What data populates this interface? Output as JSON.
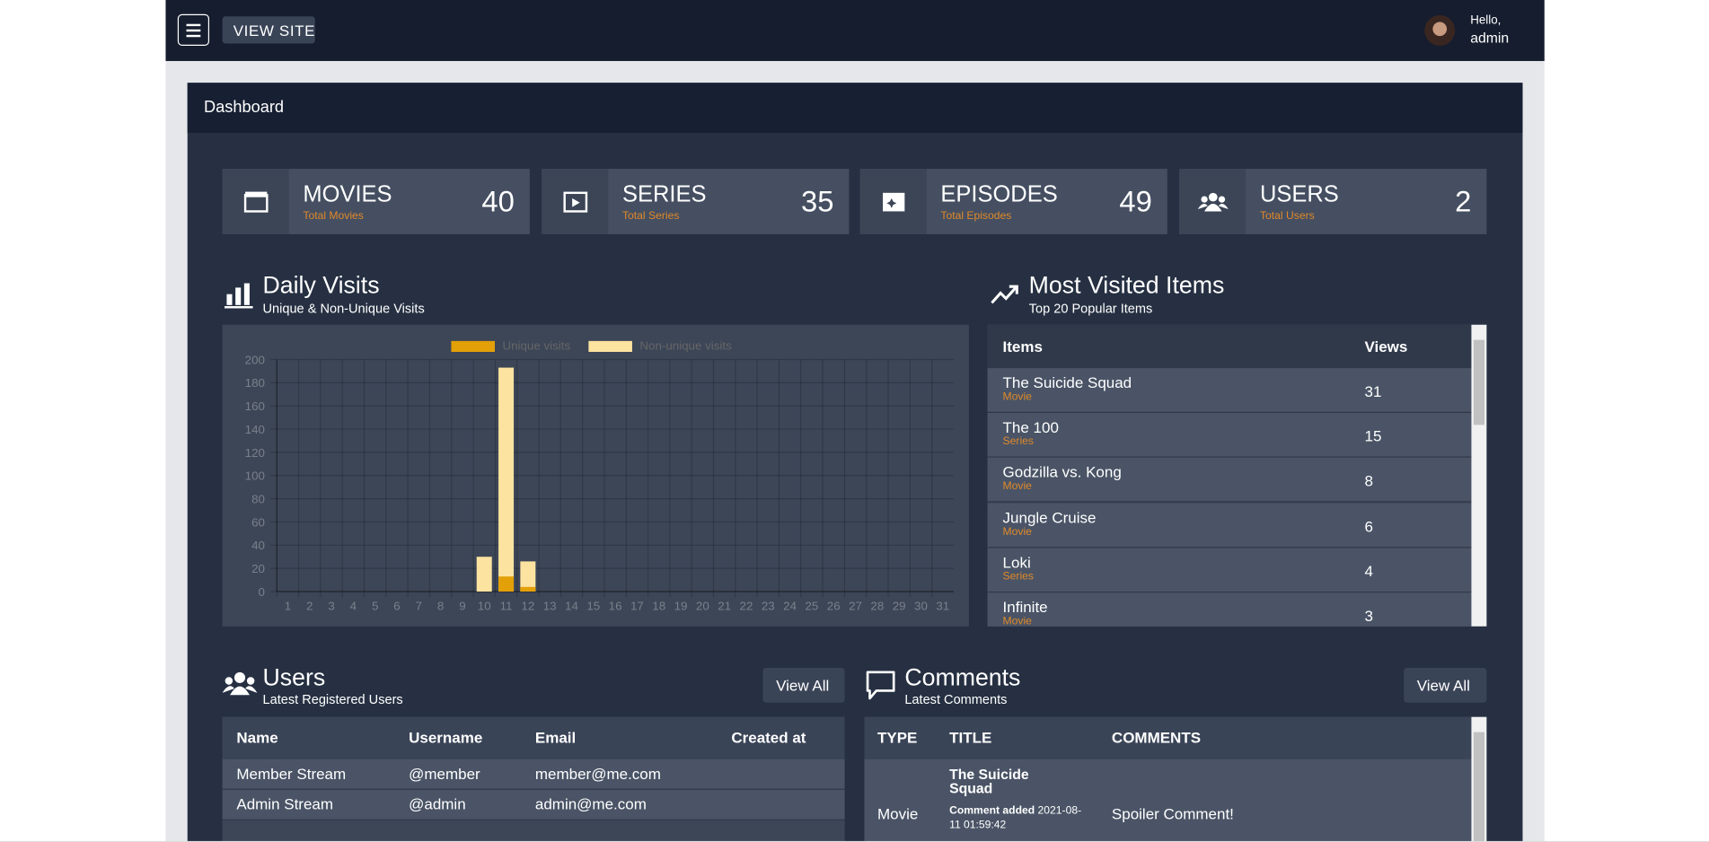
{
  "navbar": {
    "view_site": "VIEW SITE",
    "greeting": "Hello,",
    "user": "admin"
  },
  "header": {
    "title": "Dashboard"
  },
  "stats": [
    {
      "title": "MOVIES",
      "subtitle": "Total Movies",
      "value": 40
    },
    {
      "title": "SERIES",
      "subtitle": "Total Series",
      "value": 35
    },
    {
      "title": "EPISODES",
      "subtitle": "Total Episodes",
      "value": 49
    },
    {
      "title": "USERS",
      "subtitle": "Total Users",
      "value": 2
    }
  ],
  "chart_data": {
    "type": "bar",
    "title": "Daily Visits",
    "subtitle": "Unique & Non-Unique Visits",
    "categories": [
      "1",
      "2",
      "3",
      "4",
      "5",
      "6",
      "7",
      "8",
      "9",
      "10",
      "11",
      "12",
      "13",
      "14",
      "15",
      "16",
      "17",
      "18",
      "19",
      "20",
      "21",
      "22",
      "23",
      "24",
      "25",
      "26",
      "27",
      "28",
      "29",
      "30",
      "31"
    ],
    "series": [
      {
        "name": "Unique visits",
        "color": "#e3a008",
        "values": [
          0,
          0,
          0,
          0,
          0,
          0,
          0,
          0,
          0,
          0,
          13,
          4,
          0,
          0,
          0,
          0,
          0,
          0,
          0,
          0,
          0,
          0,
          0,
          0,
          0,
          0,
          0,
          0,
          0,
          0,
          0
        ]
      },
      {
        "name": "Non-unique visits",
        "color": "#fde3a0",
        "values": [
          0,
          0,
          0,
          0,
          0,
          0,
          0,
          0,
          0,
          30,
          193,
          26,
          0,
          0,
          0,
          0,
          0,
          0,
          0,
          0,
          0,
          0,
          0,
          0,
          0,
          0,
          0,
          0,
          0,
          0,
          0
        ]
      }
    ],
    "ylim": [
      0,
      200
    ],
    "yticks": [
      0,
      20,
      40,
      60,
      80,
      100,
      120,
      140,
      160,
      180,
      200
    ],
    "grid": true,
    "legend": "top"
  },
  "most_visited": {
    "title": "Most Visited Items",
    "subtitle": "Top 20 Popular Items",
    "columns": [
      "Items",
      "Views"
    ],
    "rows": [
      {
        "name": "The Suicide Squad",
        "type": "Movie",
        "views": 31
      },
      {
        "name": "The 100",
        "type": "Series",
        "views": 15
      },
      {
        "name": "Godzilla vs. Kong",
        "type": "Movie",
        "views": 8
      },
      {
        "name": "Jungle Cruise",
        "type": "Movie",
        "views": 6
      },
      {
        "name": "Loki",
        "type": "Series",
        "views": 4
      },
      {
        "name": "Infinite",
        "type": "Movie",
        "views": 3
      }
    ]
  },
  "users": {
    "title": "Users",
    "subtitle": "Latest Registered Users",
    "button": "View All",
    "columns": [
      "Name",
      "Username",
      "Email",
      "Created at"
    ],
    "rows": [
      [
        "Member Stream",
        "@member",
        "member@me.com"
      ],
      [
        "Admin Stream",
        "@admin",
        "admin@me.com"
      ]
    ]
  },
  "comments": {
    "title": "Comments",
    "subtitle": "Latest Comments",
    "button": "View All",
    "columns": [
      "TYPE",
      "TITLE",
      "COMMENTS"
    ],
    "rows": [
      {
        "type": "Movie",
        "title": "The Suicide Squad",
        "meta_label": "Comment added",
        "date": "2021-08-11 01:59:42",
        "comment": "Spoiler Comment!"
      }
    ]
  }
}
